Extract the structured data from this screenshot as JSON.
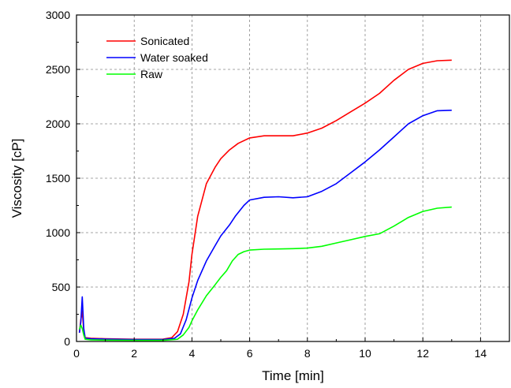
{
  "chart_data": {
    "type": "line",
    "title": "",
    "xlabel": "Time [min]",
    "ylabel": "Viscosity [cP]",
    "xlim": [
      0,
      15
    ],
    "ylim": [
      0,
      3000
    ],
    "xticks": [
      0,
      2,
      4,
      6,
      8,
      10,
      12,
      14
    ],
    "yticks": [
      0,
      500,
      1000,
      1500,
      2000,
      2500,
      3000
    ],
    "grid": true,
    "legend_position": "top-left",
    "series": [
      {
        "name": "Sonicated",
        "color": "#ff0000",
        "x": [
          0.1,
          0.15,
          0.2,
          0.25,
          0.3,
          0.5,
          1,
          2,
          3,
          3.3,
          3.5,
          3.7,
          3.9,
          4.0,
          4.2,
          4.5,
          4.8,
          5.0,
          5.3,
          5.6,
          6.0,
          6.5,
          7.0,
          7.5,
          8.0,
          8.5,
          9.0,
          9.5,
          10.0,
          10.5,
          11.0,
          11.5,
          12.0,
          12.5,
          13.0
        ],
        "y": [
          80,
          200,
          280,
          100,
          35,
          30,
          25,
          20,
          22,
          35,
          90,
          250,
          550,
          800,
          1150,
          1450,
          1600,
          1680,
          1760,
          1820,
          1870,
          1890,
          1890,
          1890,
          1915,
          1960,
          2030,
          2110,
          2190,
          2280,
          2400,
          2500,
          2555,
          2580,
          2585
        ]
      },
      {
        "name": "Water soaked",
        "color": "#0000ff",
        "x": [
          0.1,
          0.15,
          0.2,
          0.25,
          0.3,
          0.5,
          1,
          2,
          3,
          3.4,
          3.6,
          3.8,
          4.0,
          4.2,
          4.5,
          4.8,
          5.0,
          5.3,
          5.5,
          5.8,
          6.0,
          6.5,
          7.0,
          7.5,
          8.0,
          8.5,
          9.0,
          9.5,
          10.0,
          10.5,
          11.0,
          11.5,
          12.0,
          12.5,
          13.0
        ],
        "y": [
          80,
          180,
          410,
          120,
          30,
          25,
          22,
          18,
          18,
          30,
          70,
          200,
          400,
          560,
          740,
          880,
          970,
          1070,
          1150,
          1250,
          1300,
          1325,
          1330,
          1320,
          1330,
          1380,
          1450,
          1550,
          1650,
          1760,
          1880,
          2000,
          2075,
          2120,
          2125
        ]
      },
      {
        "name": "Raw",
        "color": "#00ff00",
        "x": [
          0.1,
          0.15,
          0.2,
          0.25,
          0.3,
          0.5,
          1,
          2,
          3,
          3.5,
          3.7,
          3.9,
          4.0,
          4.2,
          4.5,
          4.8,
          5.0,
          5.2,
          5.4,
          5.6,
          5.8,
          6.0,
          6.5,
          7.0,
          7.5,
          8.0,
          8.5,
          9.0,
          9.5,
          10.0,
          10.5,
          11.0,
          11.5,
          12.0,
          12.5,
          13.0
        ],
        "y": [
          110,
          150,
          120,
          60,
          20,
          15,
          12,
          10,
          10,
          20,
          60,
          130,
          190,
          290,
          420,
          520,
          590,
          650,
          740,
          800,
          825,
          840,
          848,
          850,
          853,
          858,
          875,
          905,
          935,
          965,
          990,
          1060,
          1140,
          1195,
          1225,
          1235
        ]
      }
    ]
  }
}
